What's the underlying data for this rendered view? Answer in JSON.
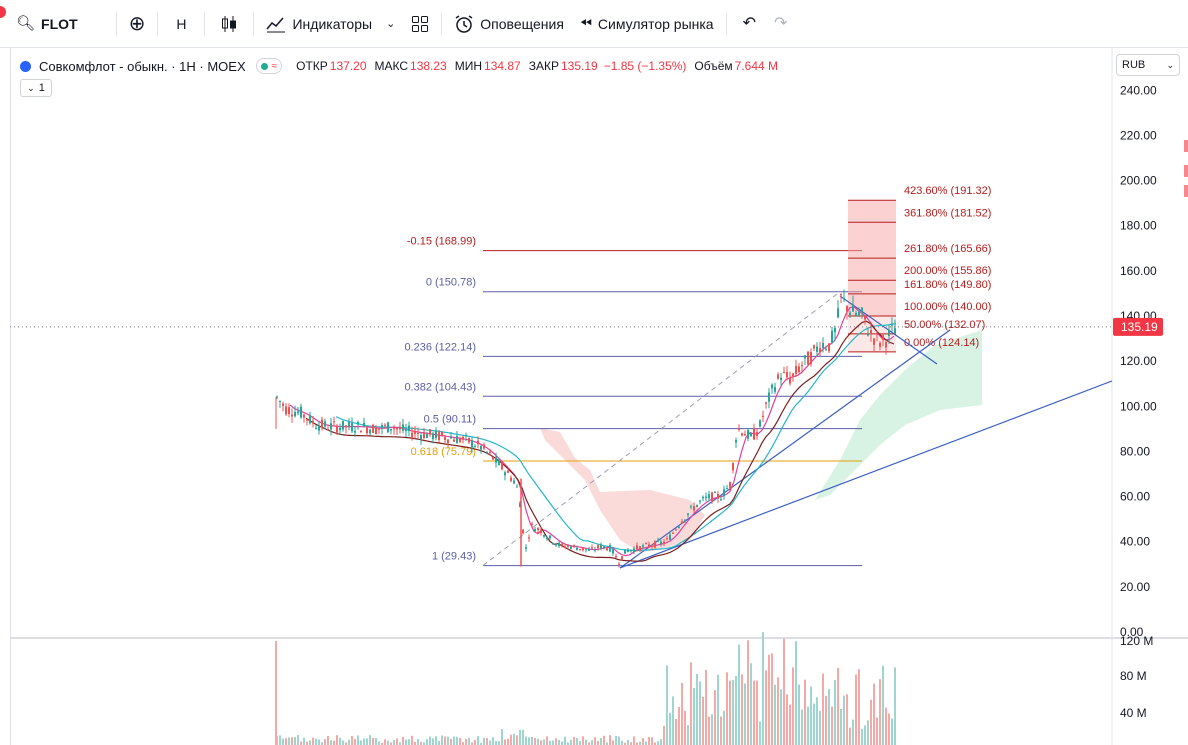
{
  "toolbar": {
    "symbol": "FLOT",
    "interval": "H",
    "indicators_label": "Индикаторы",
    "alerts_label": "Оповещения",
    "replay_label": "Симулятор рынка"
  },
  "legend": {
    "title": "Совкомфлот - обыкн. · 1Н · MOEX",
    "open_label": "ОТКР",
    "open": "137.20",
    "high_label": "МАКС",
    "high": "138.23",
    "low_label": "МИН",
    "low": "134.87",
    "close_label": "ЗАКР",
    "close": "135.19",
    "change": "−1.85 (−1.35%)",
    "volume_label": "Объём",
    "volume": "7.644 M",
    "collapse_count": "1"
  },
  "currency": "RUB",
  "price_axis": {
    "ticks": [
      "240.00",
      "220.00",
      "200.00",
      "180.00",
      "160.00",
      "140.00",
      "120.00",
      "100.00",
      "80.00",
      "60.00",
      "40.00",
      "20.00",
      "0.00"
    ],
    "current_price": "135.19"
  },
  "volume_axis": {
    "ticks": [
      "120 M",
      "80 M",
      "40 M"
    ]
  },
  "fib_retracement": [
    {
      "label": "-0.15 (168.99)",
      "price": 168.99,
      "color": "#b71c1c"
    },
    {
      "label": "0 (150.78)",
      "price": 150.78,
      "color": "#5b5fa6"
    },
    {
      "label": "0.236 (122.14)",
      "price": 122.14,
      "color": "#5b5fa6"
    },
    {
      "label": "0.382 (104.43)",
      "price": 104.43,
      "color": "#5b5fa6"
    },
    {
      "label": "0.5 (90.11)",
      "price": 90.11,
      "color": "#5b5fa6"
    },
    {
      "label": "0.618 (75.79)",
      "price": 75.79,
      "color": "#e3a008"
    },
    {
      "label": "1 (29.43)",
      "price": 29.43,
      "color": "#5b5fa6"
    }
  ],
  "fib_extension": [
    {
      "label": "423.60% (191.32)",
      "price": 191.32
    },
    {
      "label": "361.80% (181.52)",
      "price": 181.52
    },
    {
      "label": "261.80% (165.66)",
      "price": 165.66
    },
    {
      "label": "200.00% (155.86)",
      "price": 155.86
    },
    {
      "label": "161.80% (149.80)",
      "price": 149.8
    },
    {
      "label": "100.00% (140.00)",
      "price": 140.0
    },
    {
      "label": "50.00% (132.07)",
      "price": 132.07
    },
    {
      "label": "0.00% (124.14)",
      "price": 124.14
    }
  ],
  "colors": {
    "up": "#26a69a",
    "down": "#ef5350",
    "fib_red": "#b71c1c",
    "fib_blue": "#5b5fa6",
    "ma_pink": "#e040a0",
    "ma_cyan": "#26b7c9",
    "ma_maroon": "#7b1f1f",
    "trend_blue": "#3a5fc2"
  }
}
